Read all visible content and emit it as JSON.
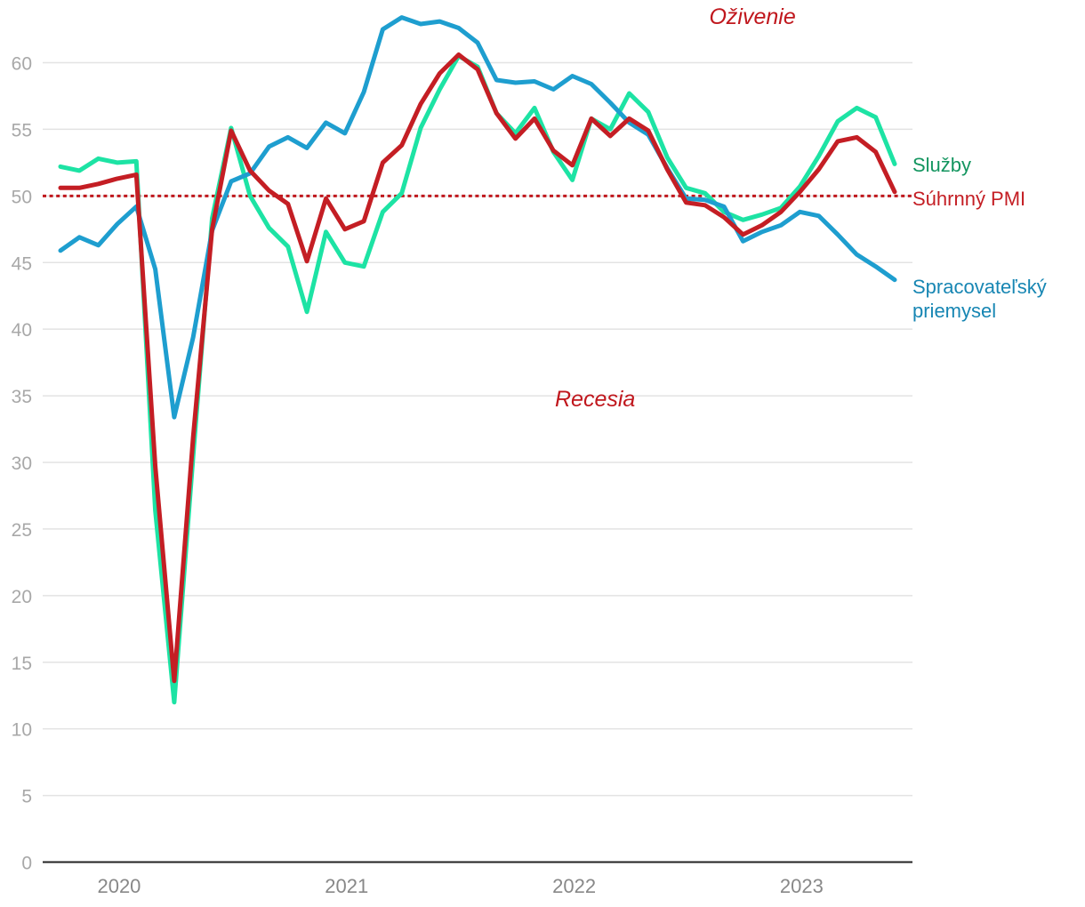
{
  "chart_data": {
    "type": "line",
    "title": "",
    "xlabel": "",
    "ylabel": "",
    "ylim": [
      0,
      63
    ],
    "yticks": [
      0,
      5,
      10,
      15,
      20,
      25,
      30,
      35,
      40,
      45,
      50,
      55,
      60
    ],
    "x_start": "2019-10",
    "x_ticks": [
      {
        "label": "2020",
        "index": 3
      },
      {
        "label": "2021",
        "index": 15
      },
      {
        "label": "2022",
        "index": 27
      },
      {
        "label": "2023",
        "index": 39
      }
    ],
    "threshold": {
      "value": 50,
      "color": "#c0171d"
    },
    "annotations": [
      {
        "text": "Oživenie",
        "value": 63.5,
        "index": 36.5,
        "color": "#c0171d"
      },
      {
        "text": "Recesia",
        "value": 34.8,
        "index": 28.2,
        "color": "#c0171d"
      }
    ],
    "series": [
      {
        "name": "Služby",
        "label_lines": [
          "Služby"
        ],
        "color": "#1de3a4",
        "label_color": "#13955f",
        "values": [
          52.2,
          51.9,
          52.8,
          52.5,
          52.6,
          26.4,
          12.0,
          30.5,
          48.3,
          55.1,
          50.0,
          47.6,
          46.2,
          41.3,
          47.3,
          45.0,
          44.7,
          48.8,
          50.2,
          55.1,
          58.0,
          60.5,
          59.7,
          56.2,
          54.7,
          56.6,
          53.3,
          51.2,
          55.8,
          55.0,
          57.7,
          56.3,
          52.9,
          50.6,
          50.2,
          48.8,
          48.2,
          48.6,
          49.1,
          50.7,
          53.0,
          55.6,
          56.6,
          55.9,
          52.4
        ]
      },
      {
        "name": "Súhrnný PMI",
        "label_lines": [
          "Súhrnný PMI"
        ],
        "color": "#c41e24",
        "label_color": "#c41e24",
        "values": [
          50.6,
          50.6,
          50.9,
          51.3,
          51.6,
          29.7,
          13.6,
          31.9,
          47.5,
          54.9,
          51.9,
          50.4,
          49.4,
          45.1,
          49.8,
          47.5,
          48.1,
          52.5,
          53.8,
          56.9,
          59.2,
          60.6,
          59.5,
          56.2,
          54.3,
          55.8,
          53.4,
          52.3,
          55.8,
          54.5,
          55.8,
          54.9,
          52.0,
          49.5,
          49.3,
          48.4,
          47.1,
          47.8,
          48.8,
          50.3,
          52.0,
          54.1,
          54.4,
          53.3,
          50.3
        ]
      },
      {
        "name": "Spracovateľský priemysel",
        "label_lines": [
          "Spracovateľský",
          "priemysel"
        ],
        "color": "#1e9ecf",
        "label_color": "#1786b3",
        "values": [
          45.9,
          46.9,
          46.3,
          47.9,
          49.2,
          44.5,
          33.4,
          39.4,
          47.4,
          51.1,
          51.7,
          53.7,
          54.4,
          53.6,
          55.5,
          54.7,
          57.8,
          62.5,
          63.4,
          62.9,
          63.1,
          62.6,
          61.5,
          58.7,
          58.5,
          58.6,
          58.0,
          59.0,
          58.4,
          57.0,
          55.5,
          54.6,
          52.1,
          49.8,
          49.7,
          49.2,
          46.6,
          47.3,
          47.8,
          48.8,
          48.5,
          47.1,
          45.6,
          44.7,
          43.7
        ]
      }
    ]
  }
}
